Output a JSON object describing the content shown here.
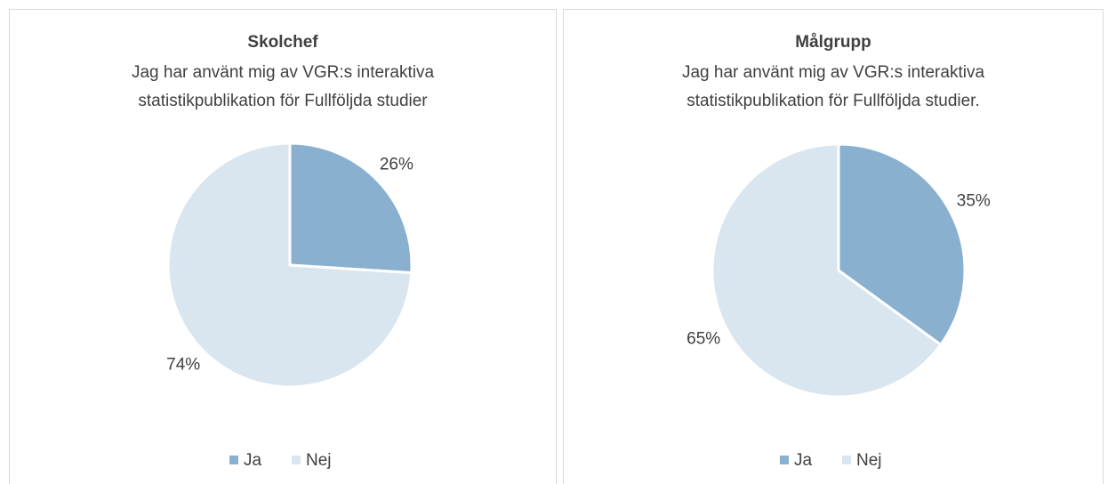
{
  "chart_data": [
    {
      "type": "pie",
      "title": "Skolchef",
      "subtitle": [
        "Jag har använt mig av VGR:s interaktiva",
        "statistikpublikation för Fullföljda studier"
      ],
      "categories": [
        "Ja",
        "Nej"
      ],
      "values": [
        26,
        74
      ],
      "value_labels": [
        "26%",
        "74%"
      ],
      "colors": [
        "#8ab0d0",
        "#d9e6f0"
      ],
      "legend": "bottom"
    },
    {
      "type": "pie",
      "title": "Målgrupp",
      "subtitle": [
        "Jag har använt mig av VGR:s interaktiva",
        "statistikpublikation för Fullföljda studier."
      ],
      "categories": [
        "Ja",
        "Nej"
      ],
      "values": [
        35,
        65
      ],
      "value_labels": [
        "35%",
        "65%"
      ],
      "colors": [
        "#8ab0d0",
        "#d9e6f0"
      ],
      "legend": "bottom"
    }
  ]
}
